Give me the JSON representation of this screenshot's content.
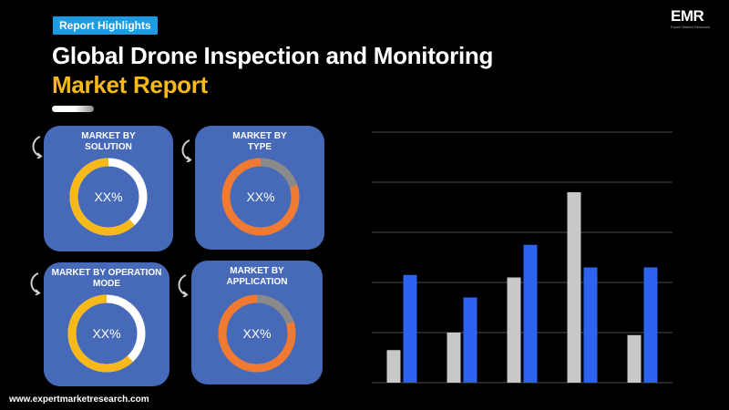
{
  "header": {
    "badge": "Report Highlights",
    "title_line1": "Global Drone Inspection and Monitoring",
    "title_line2": "Market Report"
  },
  "logo": {
    "mark": "EMR",
    "tagline": "Expert Market Research"
  },
  "cards": [
    {
      "line1": "MARKET BY",
      "line2": "SOLUTION",
      "value": "XX%",
      "ring_color": "#f7b81a",
      "ring_fill": 0.62
    },
    {
      "line1": "MARKET BY",
      "line2": "TYPE",
      "value": "XX%",
      "ring_color": "#f07a32",
      "ring_fill": 0.8
    },
    {
      "line1": "MARKET BY OPERATION",
      "line2": "MODE",
      "value": "XX%",
      "ring_color": "#f7b81a",
      "ring_fill": 0.62
    },
    {
      "line1": "MARKET BY",
      "line2": "APPLICATION",
      "value": "XX%",
      "ring_color": "#f07a32",
      "ring_fill": 0.8
    }
  ],
  "footer": {
    "url": "www.expertmarketresearch.com"
  },
  "chart_data": {
    "type": "bar",
    "categories": [
      "",
      "",
      "",
      "",
      ""
    ],
    "series": [
      {
        "values": [
          13,
          20,
          42,
          76,
          19
        ],
        "color": "#c8c8c8"
      },
      {
        "values": [
          43,
          34,
          55,
          46,
          46
        ],
        "color": "#2e63f2"
      }
    ],
    "ylim": [
      0,
      100
    ],
    "grid": true,
    "colors": {
      "gridline": "#4a4a4a"
    }
  }
}
